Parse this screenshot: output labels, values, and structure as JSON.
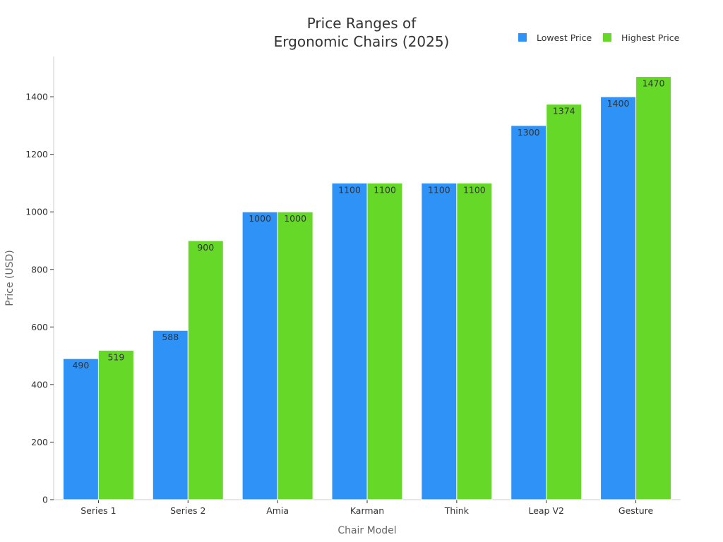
{
  "chart_data": {
    "type": "bar",
    "title_lines": [
      "Price Ranges of",
      "Ergonomic Chairs (2025)"
    ],
    "xlabel": "Chair Model",
    "ylabel": "Price (USD)",
    "categories": [
      "Series 1",
      "Series 2",
      "Amia",
      "Karman",
      "Think",
      "Leap V2",
      "Gesture"
    ],
    "series": [
      {
        "name": "Lowest Price",
        "color": "#2f92f7",
        "values": [
          490,
          588,
          1000,
          1100,
          1100,
          1300,
          1400
        ]
      },
      {
        "name": "Highest Price",
        "color": "#66d928",
        "values": [
          519,
          900,
          1000,
          1100,
          1100,
          1374,
          1470
        ]
      }
    ],
    "ylim": [
      0,
      1540
    ],
    "yticks": [
      0,
      200,
      400,
      600,
      800,
      1000,
      1200,
      1400
    ],
    "grid": false,
    "legend_position": "top-right",
    "data_labels": true
  }
}
